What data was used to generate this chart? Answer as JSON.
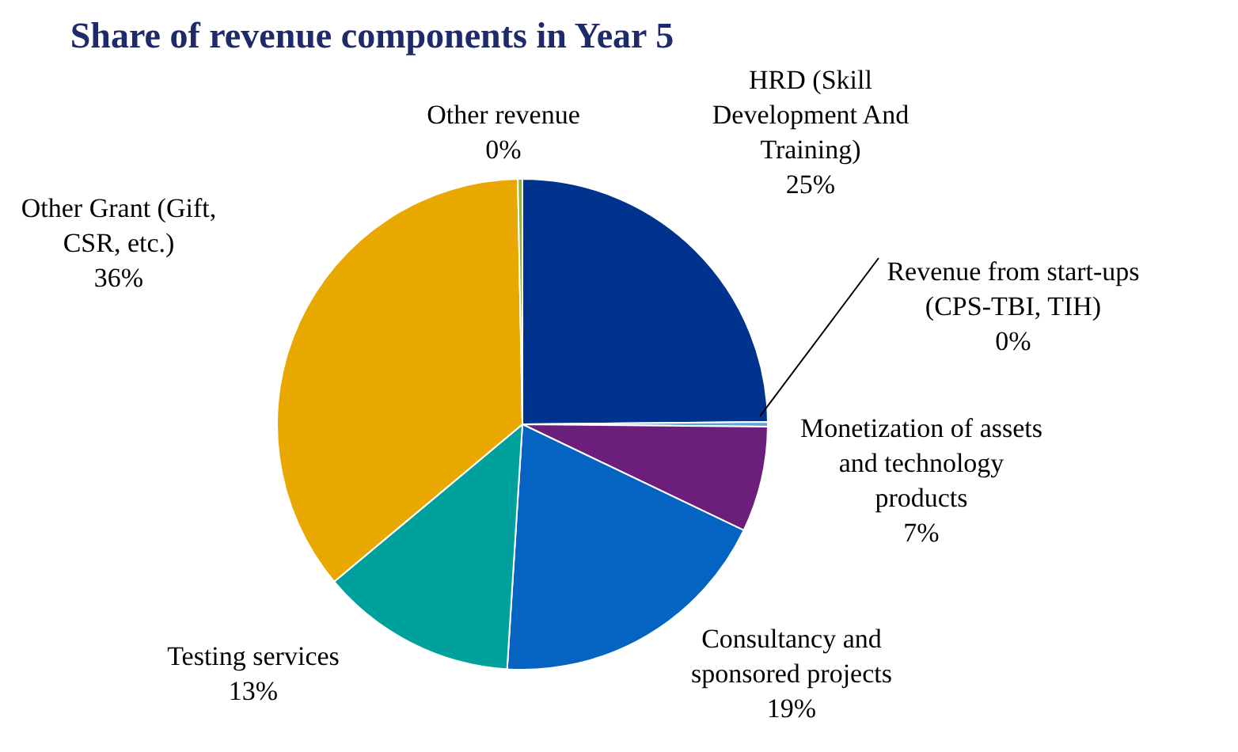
{
  "chart_data": {
    "type": "pie",
    "title": "Share of revenue components in Year 5",
    "categories": [
      "HRD (Skill Development And Training)",
      "Revenue from start-ups (CPS-TBI, TIH)",
      "Monetization of assets and technology products",
      "Consultancy and sponsored projects",
      "Testing services",
      "Other Grant (Gift, CSR, etc.)",
      "Other revenue"
    ],
    "values": [
      25,
      0.3,
      7,
      19,
      13,
      36,
      0.3
    ],
    "value_labels": [
      "25%",
      "0%",
      "7%",
      "19%",
      "13%",
      "36%",
      "0%"
    ],
    "colors": [
      "#00338d",
      "#5aa6d8",
      "#6b1f7b",
      "#0563c1",
      "#00a19c",
      "#e8a800",
      "#8db33a"
    ],
    "legend": false
  }
}
